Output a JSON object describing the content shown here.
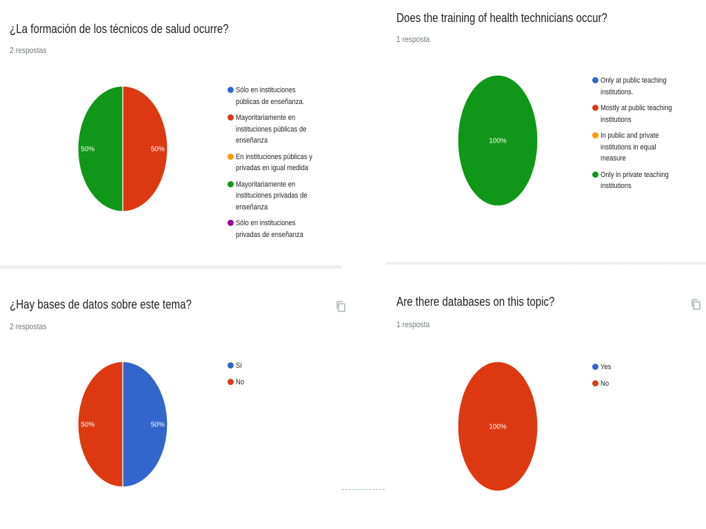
{
  "chart_data": [
    {
      "type": "pie",
      "title": "¿La formación de los técnicos de salud ocurre?",
      "subtitle": "2 respostas",
      "categories": [
        "Sólo en instituciones públicas de enseñanza.",
        "Mayoritariamente en instituciones públicas de enseñanza",
        "En instituciones públicas y privadas en igual medida",
        "Mayoritariamente en instituciones privadas de enseñanza",
        "Sólo en instituciones privadas de enseñanza"
      ],
      "values": [
        0,
        50,
        0,
        50,
        0
      ],
      "colors": [
        "#3366cc",
        "#dc3912",
        "#ff9900",
        "#109618",
        "#990099"
      ],
      "data_labels": [
        "",
        "50%",
        "",
        "50%",
        ""
      ],
      "legend": "right"
    },
    {
      "type": "pie",
      "title": "Does the training of health technicians occur?",
      "subtitle": "1 resposta",
      "categories": [
        "Only at public teaching institutions.",
        "Mostly at public teaching institutions",
        "In public and private institutions in equal measure",
        "Only in private teaching institutions"
      ],
      "values": [
        0,
        0,
        0,
        100
      ],
      "colors": [
        "#3366cc",
        "#dc3912",
        "#ff9900",
        "#109618"
      ],
      "data_labels": [
        "",
        "",
        "",
        "100%"
      ],
      "legend": "right"
    },
    {
      "type": "pie",
      "title": "¿Hay bases de datos sobre este tema?",
      "subtitle": "2 respostas",
      "categories": [
        "Sí",
        "No"
      ],
      "values": [
        50,
        50
      ],
      "colors": [
        "#3366cc",
        "#dc3912"
      ],
      "data_labels": [
        "50%",
        "50%"
      ],
      "legend": "right"
    },
    {
      "type": "pie",
      "title": "Are there databases on this topic?",
      "subtitle": "1 resposta",
      "categories": [
        "Yes",
        "No"
      ],
      "values": [
        0,
        100
      ],
      "colors": [
        "#3366cc",
        "#dc3912"
      ],
      "data_labels": [
        "",
        "100%"
      ],
      "legend": "right"
    }
  ],
  "icons": {
    "copy": "copy-icon"
  }
}
